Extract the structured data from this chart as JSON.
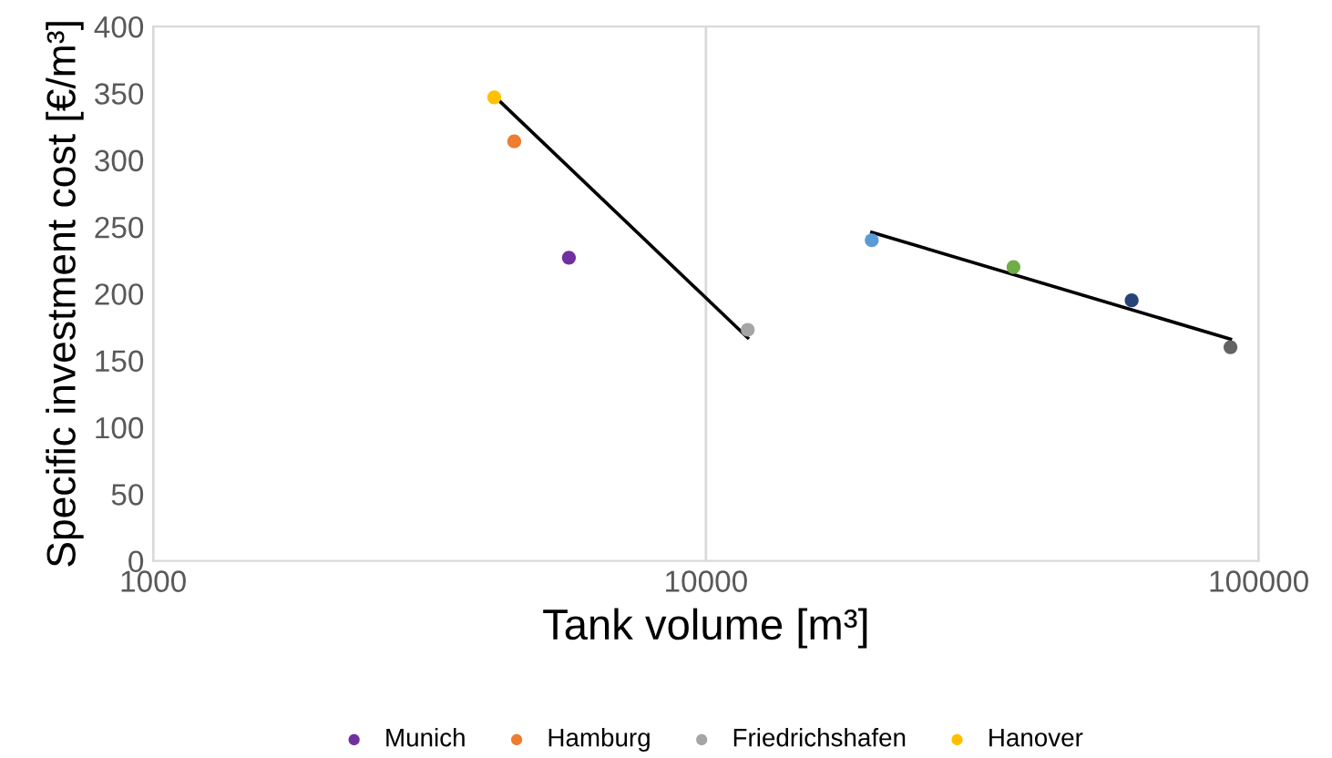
{
  "chart_data": {
    "type": "scatter",
    "xlabel": "Tank volume [m³]",
    "ylabel": "Specific investment cost [€/m³]",
    "log": "x",
    "xlim": [
      1000,
      100000
    ],
    "xticks": [
      1000,
      10000,
      100000
    ],
    "ylim": [
      0,
      400
    ],
    "yticks": [
      0,
      50,
      100,
      150,
      200,
      250,
      300,
      350,
      400
    ],
    "grid": "x",
    "legend": "bottom",
    "marker": "circle",
    "series": [
      {
        "name": "Munich",
        "color": "#7030a0",
        "x": [
          5650
        ],
        "values": [
          227
        ]
      },
      {
        "name": "Hamburg",
        "color": "#ed7d31",
        "x": [
          4500
        ],
        "values": [
          314
        ]
      },
      {
        "name": "Friedrichshafen",
        "color": "#a5a5a5",
        "x": [
          11900
        ],
        "values": [
          173
        ]
      },
      {
        "name": "Hanover",
        "color": "#ffc000",
        "x": [
          4140
        ],
        "values": [
          347
        ]
      },
      {
        "color": "#5b9bd5",
        "x": [
          19950
        ],
        "values": [
          240
        ]
      },
      {
        "color": "#70ad47",
        "x": [
          36000
        ],
        "values": [
          220
        ]
      },
      {
        "color": "#264478",
        "x": [
          58900
        ],
        "values": [
          195
        ]
      },
      {
        "color": "#636363",
        "x": [
          88900
        ],
        "values": [
          160
        ]
      },
      {
        "type": "line",
        "marker": "none",
        "color": "#000000",
        "x": [
          4140,
          11900
        ],
        "values": [
          348,
          167
        ]
      },
      {
        "type": "line",
        "marker": "none",
        "color": "#000000",
        "x": [
          19950,
          88900
        ],
        "values": [
          246,
          166
        ]
      }
    ]
  }
}
